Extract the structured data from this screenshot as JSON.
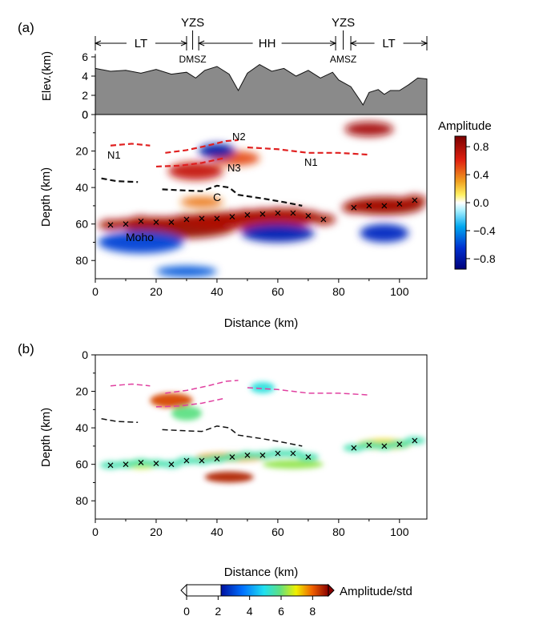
{
  "panel_a": {
    "label": "(a)",
    "regions": [
      {
        "name": "LT",
        "x_start": 0,
        "x_end": 30
      },
      {
        "name": "HH",
        "x_start": 34,
        "x_end": 79
      },
      {
        "name": "LT",
        "x_start": 84,
        "x_end": 109
      }
    ],
    "boundaries": [
      {
        "top": "YZS",
        "bottom": "DMSZ",
        "x": 32
      },
      {
        "top": "YZS",
        "bottom": "AMSZ",
        "x": 81.5
      }
    ],
    "elev_ylabel": "Elev.(km)",
    "depth_ylabel": "Depth (km)",
    "xlabel": "Distance (km)",
    "annotations": {
      "n1_left": "N1",
      "n2": "N2",
      "n3": "N3",
      "n1_right": "N1",
      "c": "C",
      "moho": "Moho"
    },
    "colorbar": {
      "title": "Amplitude",
      "ticks": [
        "0.8",
        "0.4",
        "0.0",
        "−0.4",
        "−0.8"
      ],
      "range": [
        -0.95,
        0.95
      ]
    }
  },
  "panel_b": {
    "label": "(b)",
    "depth_ylabel": "Depth (km)",
    "xlabel": "Distance (km)",
    "colorbar": {
      "title": "Amplitude/std",
      "ticks": [
        "0",
        "2",
        "4",
        "6",
        "8"
      ],
      "range": [
        0,
        9
      ]
    }
  },
  "chart_data": [
    {
      "type": "area",
      "title": "",
      "xlabel": "",
      "ylabel": "Elev.(km)",
      "xlim": [
        0,
        109
      ],
      "ylim": [
        0,
        7
      ],
      "yticks": [
        0,
        2,
        4,
        6
      ],
      "x": [
        0,
        5,
        10,
        15,
        20,
        25,
        30,
        33,
        36,
        40,
        44,
        47,
        50,
        54,
        58,
        62,
        66,
        70,
        74,
        78,
        80,
        84,
        87,
        88,
        90,
        93,
        95,
        97,
        100,
        103,
        106,
        109
      ],
      "values": [
        4.8,
        4.5,
        4.6,
        4.3,
        4.7,
        4.2,
        4.4,
        3.8,
        4.6,
        5.0,
        4.2,
        2.5,
        4.3,
        5.2,
        4.5,
        4.8,
        4.0,
        4.6,
        3.8,
        4.4,
        3.6,
        2.9,
        1.5,
        1.0,
        2.3,
        2.6,
        2.1,
        2.5,
        2.5,
        3.1,
        3.8,
        3.7
      ]
    },
    {
      "type": "heatmap",
      "title": "",
      "xlabel": "Distance (km)",
      "ylabel": "Depth (km)",
      "xlim": [
        0,
        109
      ],
      "ylim": [
        90,
        0
      ],
      "xticks": [
        0,
        20,
        40,
        60,
        80,
        100
      ],
      "yticks": [
        0,
        20,
        40,
        60,
        80
      ],
      "colormap_range": [
        -0.95,
        0.95
      ],
      "moho_picks": {
        "x": [
          5,
          10,
          15,
          20,
          25,
          30,
          35,
          40,
          45,
          50,
          55,
          60,
          65,
          70,
          75,
          85,
          90,
          95,
          100,
          105
        ],
        "y": [
          60.5,
          60,
          58.5,
          59,
          59,
          57.5,
          57,
          57,
          56,
          55,
          54.5,
          54,
          54,
          55.5,
          57.5,
          51,
          50,
          50,
          49,
          47
        ]
      },
      "interfaces": [
        {
          "label": "N1",
          "style": "red-dashed",
          "x": [
            5,
            12,
            18
          ],
          "y": [
            17,
            16,
            17
          ]
        },
        {
          "label": "N2",
          "style": "red-dashed",
          "x": [
            23,
            30,
            37,
            43,
            47
          ],
          "y": [
            21,
            19.5,
            17,
            14.5,
            14
          ]
        },
        {
          "label": "N3",
          "style": "red-dashed",
          "x": [
            20,
            28,
            35,
            42
          ],
          "y": [
            28.5,
            28,
            26.5,
            24
          ]
        },
        {
          "label": "N1",
          "style": "red-dashed",
          "x": [
            50,
            60,
            70,
            80,
            90
          ],
          "y": [
            18,
            19,
            21,
            21,
            22
          ]
        },
        {
          "label": "",
          "style": "black-dashed",
          "x": [
            2,
            7,
            14
          ],
          "y": [
            35,
            36.5,
            37
          ]
        },
        {
          "label": "C",
          "style": "black-dashed",
          "x": [
            22,
            28,
            35,
            40,
            44,
            47,
            55,
            62,
            68
          ],
          "y": [
            41,
            41.5,
            42,
            39,
            40,
            44,
            46,
            48,
            50
          ]
        }
      ],
      "anomalies": [
        {
          "x": 28,
          "y": 62,
          "value": 0.85
        },
        {
          "x": 50,
          "y": 58,
          "value": 0.75
        },
        {
          "x": 95,
          "y": 50,
          "value": 0.85
        },
        {
          "x": 33,
          "y": 31,
          "value": 0.7
        },
        {
          "x": 46,
          "y": 24,
          "value": 0.5
        },
        {
          "x": 90,
          "y": 8,
          "value": 0.8
        },
        {
          "x": 35,
          "y": 48,
          "value": 0.4
        },
        {
          "x": 40,
          "y": 20,
          "value": -0.8
        },
        {
          "x": 60,
          "y": 65,
          "value": -0.75
        },
        {
          "x": 15,
          "y": 70,
          "value": -0.6
        },
        {
          "x": 95,
          "y": 65,
          "value": -0.7
        },
        {
          "x": 30,
          "y": 86,
          "value": -0.55
        }
      ]
    },
    {
      "type": "heatmap",
      "title": "",
      "xlabel": "Distance (km)",
      "ylabel": "Depth (km)",
      "xlim": [
        0,
        109
      ],
      "ylim": [
        90,
        0
      ],
      "xticks": [
        0,
        20,
        40,
        60,
        80,
        100
      ],
      "yticks": [
        0,
        20,
        40,
        60,
        80
      ],
      "colormap_range": [
        0,
        9
      ],
      "moho_picks": {
        "x": [
          5,
          10,
          15,
          20,
          25,
          30,
          35,
          40,
          45,
          50,
          55,
          60,
          65,
          70,
          85,
          90,
          95,
          100,
          105
        ],
        "y": [
          60.5,
          60,
          59,
          59.5,
          60,
          58,
          58,
          57,
          56,
          55,
          55,
          54,
          54,
          56,
          51,
          49.5,
          50,
          49,
          47
        ]
      },
      "anomalies": [
        {
          "x": 25,
          "y": 25,
          "value": 8
        },
        {
          "x": 44,
          "y": 67,
          "value": 8.5
        },
        {
          "x": 45,
          "y": 56,
          "value": 7
        },
        {
          "x": 95,
          "y": 49,
          "value": 6.5
        },
        {
          "x": 15,
          "y": 60,
          "value": 6
        },
        {
          "x": 65,
          "y": 60,
          "value": 5.5
        },
        {
          "x": 30,
          "y": 32,
          "value": 5
        },
        {
          "x": 55,
          "y": 18,
          "value": 4
        }
      ]
    }
  ]
}
